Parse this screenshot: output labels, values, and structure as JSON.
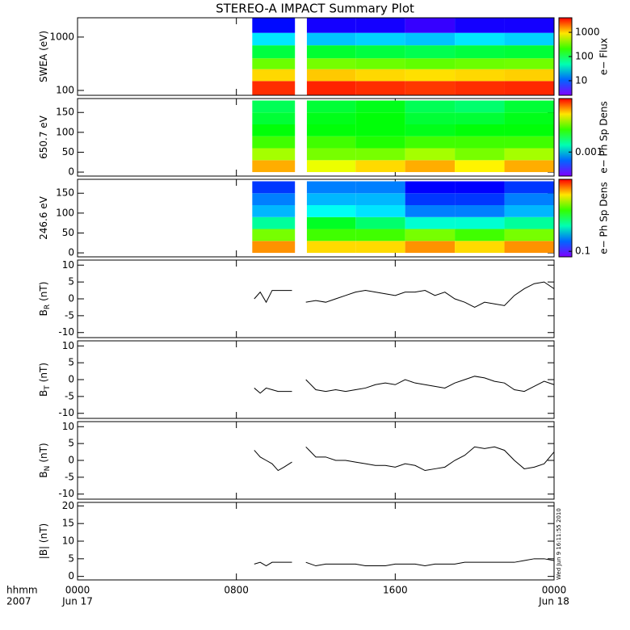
{
  "title": "STEREO-A IMPACT Summary Plot",
  "stamp": "Wed Jun 9 16:11:55 2010",
  "x_axis": {
    "xlim": [
      0,
      24
    ],
    "xticks": [
      {
        "value": 0,
        "label": "0000"
      },
      {
        "value": 8,
        "label": "0800"
      },
      {
        "value": 16,
        "label": "1600"
      },
      {
        "value": 24,
        "label": "0000"
      }
    ],
    "date_labels": [
      {
        "value": 0,
        "label": "Jun 17"
      },
      {
        "value": 24,
        "label": "Jun 18"
      }
    ],
    "unit_label": "hhmm",
    "year_label": "2007"
  },
  "chart_data": [
    {
      "type": "heatmap",
      "ylabel": "SWEA (eV)",
      "ylog": true,
      "ylim": [
        81,
        2300
      ],
      "yticks": [
        100,
        1000
      ],
      "x_bins": [
        8.8,
        10.95,
        11.55,
        14,
        16.5,
        19,
        21.5,
        24
      ],
      "y_bins": [
        81,
        150,
        250,
        400,
        700,
        1200,
        2300
      ],
      "z": [
        [
          3000,
          null,
          3200,
          3000,
          2800,
          3000,
          3100
        ],
        [
          1000,
          null,
          1100,
          1000,
          950,
          1000,
          1050
        ],
        [
          300,
          null,
          320,
          300,
          280,
          300,
          310
        ],
        [
          100,
          null,
          110,
          100,
          90,
          100,
          105
        ],
        [
          25,
          null,
          20,
          22,
          20,
          25,
          22
        ],
        [
          6,
          null,
          5,
          5,
          4,
          5,
          5
        ]
      ],
      "colorbar": {
        "label": "e− Flux",
        "clim": [
          2.5,
          4000
        ],
        "log": true,
        "ticks": [
          10,
          100,
          1000
        ]
      }
    },
    {
      "type": "heatmap",
      "ylabel": "650.7 eV",
      "ylog": false,
      "ylim": [
        -10,
        185
      ],
      "yticks": [
        0,
        50,
        100,
        150
      ],
      "x_bins": [
        8.8,
        10.95,
        11.55,
        14,
        16.5,
        19,
        21.5,
        24
      ],
      "y_bins": [
        0,
        30,
        60,
        90,
        120,
        150,
        180
      ],
      "z": [
        [
          0.012,
          null,
          0.008,
          0.01,
          0.012,
          0.009,
          0.012
        ],
        [
          0.006,
          null,
          0.005,
          0.005,
          0.006,
          0.005,
          0.006
        ],
        [
          0.004,
          null,
          0.004,
          0.0035,
          0.004,
          0.004,
          0.004
        ],
        [
          0.003,
          null,
          0.003,
          0.003,
          0.0028,
          0.003,
          0.003
        ],
        [
          0.0025,
          null,
          0.0028,
          0.003,
          0.0025,
          0.0025,
          0.0028
        ],
        [
          0.0022,
          null,
          0.0025,
          0.0028,
          0.0022,
          0.002,
          0.0025
        ]
      ],
      "colorbar": {
        "label": "e− Ph Sp Dens",
        "clim": [
          0.00024,
          0.024
        ],
        "log": true,
        "ticks": [
          0.001
        ]
      }
    },
    {
      "type": "heatmap",
      "ylabel": "246.6 eV",
      "ylog": false,
      "ylim": [
        -10,
        185
      ],
      "yticks": [
        0,
        50,
        100,
        150
      ],
      "x_bins": [
        8.8,
        10.95,
        11.55,
        14,
        16.5,
        19,
        21.5,
        24
      ],
      "y_bins": [
        0,
        30,
        60,
        90,
        120,
        150,
        180
      ],
      "z": [
        [
          4,
          null,
          3,
          3,
          4,
          3,
          4
        ],
        [
          1.5,
          null,
          1.2,
          1.2,
          1.5,
          1.2,
          1.5
        ],
        [
          0.5,
          null,
          0.8,
          0.6,
          0.4,
          0.4,
          0.5
        ],
        [
          0.25,
          null,
          0.35,
          0.3,
          0.2,
          0.2,
          0.25
        ],
        [
          0.2,
          null,
          0.25,
          0.25,
          0.15,
          0.15,
          0.2
        ],
        [
          0.15,
          null,
          0.2,
          0.2,
          0.12,
          0.12,
          0.15
        ]
      ],
      "colorbar": {
        "label": "e− Ph Sp Dens",
        "clim": [
          0.072,
          7.2
        ],
        "log": true,
        "ticks": [
          0.1
        ]
      }
    },
    {
      "type": "line",
      "ylabel": "B",
      "ylabel_sub": "R",
      "ylabel_unit": "(nT)",
      "ylim": [
        -11.5,
        11.5
      ],
      "yticks": [
        -10,
        -5,
        0,
        5,
        10
      ],
      "color": "#000000",
      "x": [
        8.9,
        9.2,
        9.5,
        9.8,
        10.1,
        10.4,
        10.8,
        11.2,
        11.5,
        12,
        12.5,
        13,
        13.5,
        14,
        14.5,
        15,
        15.5,
        16,
        16.5,
        17,
        17.5,
        18,
        18.5,
        19,
        19.5,
        20,
        20.5,
        21,
        21.5,
        22,
        22.5,
        23,
        23.5,
        24
      ],
      "values": [
        0,
        2,
        -1,
        2.5,
        2.5,
        2.5,
        2.5,
        null,
        -1,
        -0.5,
        -1,
        0,
        1,
        2,
        2.5,
        2,
        1.5,
        1,
        2,
        2,
        2.5,
        1,
        2,
        0,
        -1,
        -2.5,
        -1,
        -1.5,
        -2,
        1,
        3,
        4.5,
        5,
        3
      ]
    },
    {
      "type": "line",
      "ylabel": "B",
      "ylabel_sub": "T",
      "ylabel_unit": "(nT)",
      "ylim": [
        -11.5,
        11.5
      ],
      "yticks": [
        -10,
        -5,
        0,
        5,
        10
      ],
      "color": "#000000",
      "x": [
        8.9,
        9.2,
        9.5,
        9.8,
        10.1,
        10.4,
        10.8,
        11.2,
        11.5,
        12,
        12.5,
        13,
        13.5,
        14,
        14.5,
        15,
        15.5,
        16,
        16.5,
        17,
        17.5,
        18,
        18.5,
        19,
        19.5,
        20,
        20.5,
        21,
        21.5,
        22,
        22.5,
        23,
        23.5,
        24
      ],
      "values": [
        -2.5,
        -4,
        -2.5,
        -3,
        -3.5,
        -3.5,
        -3.5,
        null,
        0,
        -3,
        -3.5,
        -3,
        -3.5,
        -3,
        -2.5,
        -1.5,
        -1,
        -1.5,
        0,
        -1,
        -1.5,
        -2,
        -2.5,
        -1,
        0,
        1,
        0.5,
        -0.5,
        -1,
        -3,
        -3.5,
        -2,
        -0.5,
        -1.5
      ]
    },
    {
      "type": "line",
      "ylabel": "B",
      "ylabel_sub": "N",
      "ylabel_unit": "(nT)",
      "ylim": [
        -11.5,
        11.5
      ],
      "yticks": [
        -10,
        -5,
        0,
        5,
        10
      ],
      "color": "#000000",
      "x": [
        8.9,
        9.2,
        9.5,
        9.8,
        10.1,
        10.4,
        10.8,
        11.2,
        11.5,
        12,
        12.5,
        13,
        13.5,
        14,
        14.5,
        15,
        15.5,
        16,
        16.5,
        17,
        17.5,
        18,
        18.5,
        19,
        19.5,
        20,
        20.5,
        21,
        21.5,
        22,
        22.5,
        23,
        23.5,
        24
      ],
      "values": [
        3,
        1,
        0,
        -1,
        -3,
        -2,
        -0.5,
        null,
        4,
        1,
        1,
        0,
        0,
        -0.5,
        -1,
        -1.5,
        -1.5,
        -2,
        -1,
        -1.5,
        -3,
        -2.5,
        -2,
        0,
        1.5,
        4,
        3.5,
        4,
        3,
        0,
        -2.5,
        -2,
        -1,
        2.5
      ]
    },
    {
      "type": "line",
      "ylabel": "|B| (nT)",
      "ylim": [
        -1,
        21
      ],
      "yticks": [
        0,
        5,
        10,
        15,
        20
      ],
      "color": "#000000",
      "x": [
        8.9,
        9.2,
        9.5,
        9.8,
        10.1,
        10.4,
        10.8,
        11.2,
        11.5,
        12,
        12.5,
        13,
        13.5,
        14,
        14.5,
        15,
        15.5,
        16,
        16.5,
        17,
        17.5,
        18,
        18.5,
        19,
        19.5,
        20,
        20.5,
        21,
        21.5,
        22,
        22.5,
        23,
        23.5,
        24
      ],
      "values": [
        3.5,
        4,
        3,
        4,
        4,
        4,
        4,
        null,
        4,
        3,
        3.5,
        3.5,
        3.5,
        3.5,
        3,
        3,
        3,
        3.5,
        3.5,
        3.5,
        3,
        3.5,
        3.5,
        3.5,
        4,
        4,
        4,
        4,
        4,
        4,
        4.5,
        5,
        5,
        4.5
      ]
    }
  ]
}
